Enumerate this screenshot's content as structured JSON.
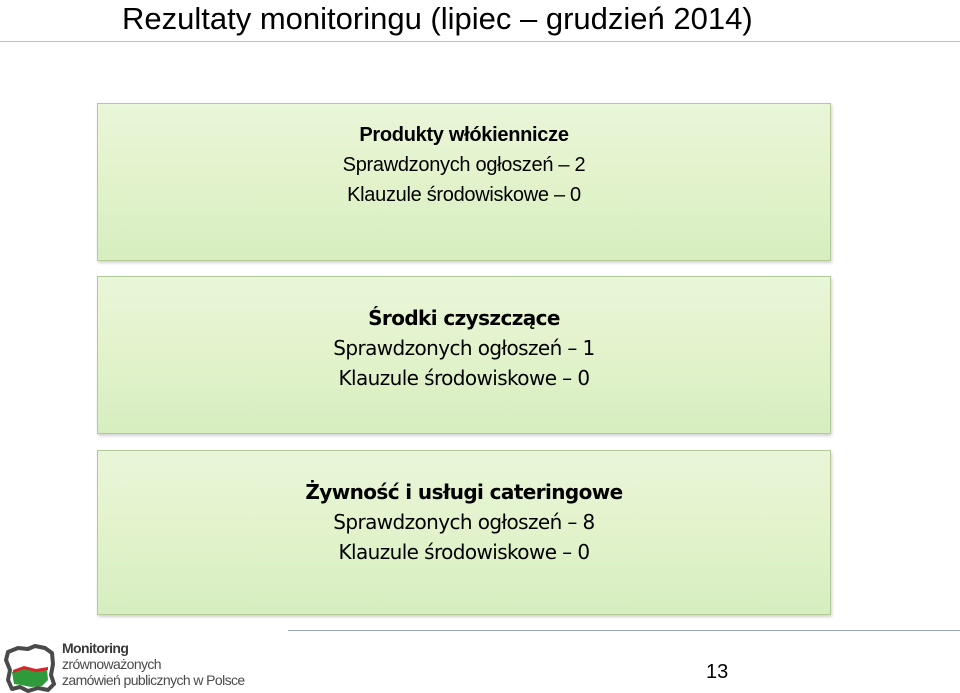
{
  "slide": {
    "title": "Rezultaty monitoringu (lipiec – grudzień 2014)",
    "page_number": "13"
  },
  "boxes": [
    {
      "heading": "Produkty włókiennicze",
      "checked": "Sprawdzonych ogłoszeń – 2",
      "clauses": "Klauzule środowiskowe – 0"
    },
    {
      "heading": "Środki czyszczące",
      "checked": "Sprawdzonych ogłoszeń – 1",
      "clauses": "Klauzule środowiskowe – 0"
    },
    {
      "heading": "Żywność i usługi cateringowe",
      "checked": "Sprawdzonych ogłoszeń – 8",
      "clauses": "Klauzule środowiskowe – 0"
    }
  ],
  "logo": {
    "line1": "Monitoring",
    "line2": "zrównoważonych",
    "line3": "zamówień publicznych w Polsce",
    "colors": {
      "green": "#2f9a3a",
      "red": "#d8232a",
      "text": "#4a4a4a"
    }
  }
}
